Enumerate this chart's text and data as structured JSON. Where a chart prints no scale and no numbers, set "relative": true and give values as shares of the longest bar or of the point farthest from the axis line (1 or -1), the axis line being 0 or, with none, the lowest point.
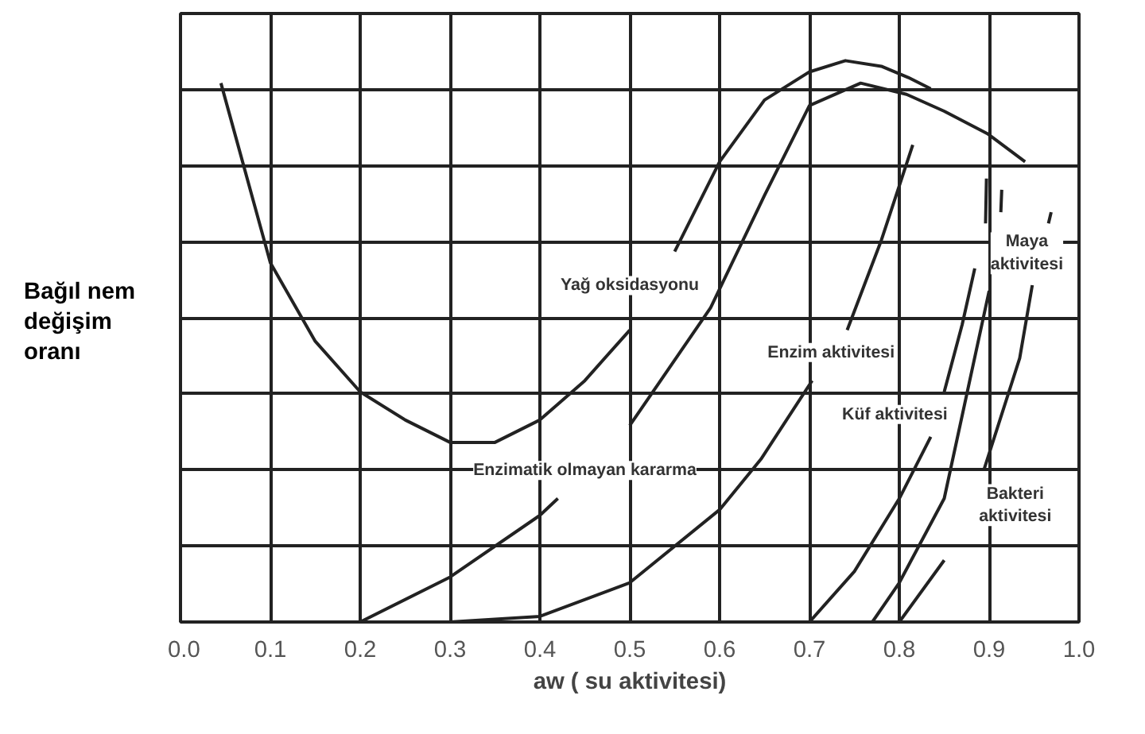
{
  "chart_data": {
    "type": "line",
    "relative": true,
    "xlabel": "aw ( su aktivitesi)",
    "ylabel": "Bağıl nem\ndeğişim\noranı",
    "xlim": [
      0,
      1
    ],
    "xticks": [
      {
        "value": 0,
        "label": "0.0"
      },
      0.1,
      0.2,
      0.3,
      0.4,
      0.5,
      0.6,
      0.7,
      0.8,
      0.9,
      {
        "value": 1,
        "label": "1.0"
      }
    ],
    "grid": true,
    "marker": "none",
    "line_style": "solid",
    "series": [
      {
        "color": "#222222",
        "x": [
          0.045,
          0.1,
          0.15,
          0.2,
          0.25,
          0.3,
          0.35,
          0.4,
          0.45,
          0.5,
          0.525,
          0.55,
          0.6,
          0.65,
          0.7,
          0.74,
          0.78,
          0.81,
          0.835
        ],
        "values": [
          0.96,
          0.64,
          0.5,
          0.41,
          0.36,
          0.32,
          0.32,
          0.36,
          0.43,
          0.52,
          null,
          0.66,
          0.82,
          0.93,
          0.98,
          1.0,
          0.99,
          0.97,
          0.95
        ]
      },
      {
        "color": "#222222",
        "x": [
          0.2,
          0.3,
          0.4,
          0.42,
          0.46,
          0.5,
          0.59,
          0.65,
          0.7,
          0.757,
          0.808,
          0.85,
          0.898,
          0.94
        ],
        "values": [
          0,
          0.08,
          0.19,
          0.22,
          null,
          0.35,
          0.56,
          0.76,
          0.92,
          0.96,
          0.94,
          0.91,
          0.87,
          0.82
        ]
      },
      {
        "color": "#222222",
        "x": [
          0.3,
          0.4,
          0.5,
          0.6,
          0.646,
          0.703,
          0.72,
          0.742,
          0.78,
          0.815
        ],
        "values": [
          0,
          0.01,
          0.07,
          0.2,
          0.29,
          0.43,
          null,
          0.52,
          0.68,
          0.85
        ]
      },
      {
        "color": "#222222",
        "x": [
          0.7,
          0.75,
          0.8,
          0.835,
          0.842,
          0.85,
          0.87,
          0.884,
          0.89,
          0.896,
          0.897
        ],
        "values": [
          0,
          0.09,
          0.22,
          0.33,
          null,
          0.41,
          0.53,
          0.63,
          null,
          0.71,
          0.79
        ]
      },
      {
        "color": "#222222",
        "x": [
          0.77,
          0.8,
          0.85,
          0.9,
          0.906,
          0.913,
          0.914
        ],
        "values": [
          0,
          0.07,
          0.22,
          0.59,
          null,
          0.73,
          0.77
        ]
      },
      {
        "color": "#222222",
        "x": [
          0.8,
          0.85,
          0.87,
          0.894,
          0.934,
          0.948,
          0.957,
          0.966,
          0.969
        ],
        "values": [
          0,
          0.11,
          null,
          0.27,
          0.47,
          0.6,
          null,
          0.71,
          0.73
        ]
      }
    ],
    "annotations": [
      "Yağ oksidasyonu",
      "Enzimatik olmayan kararma",
      "Enzim aktivitesi",
      "Küf aktivitesi",
      "Maya\naktivitesi",
      "Bakteri\naktivitesi"
    ]
  }
}
